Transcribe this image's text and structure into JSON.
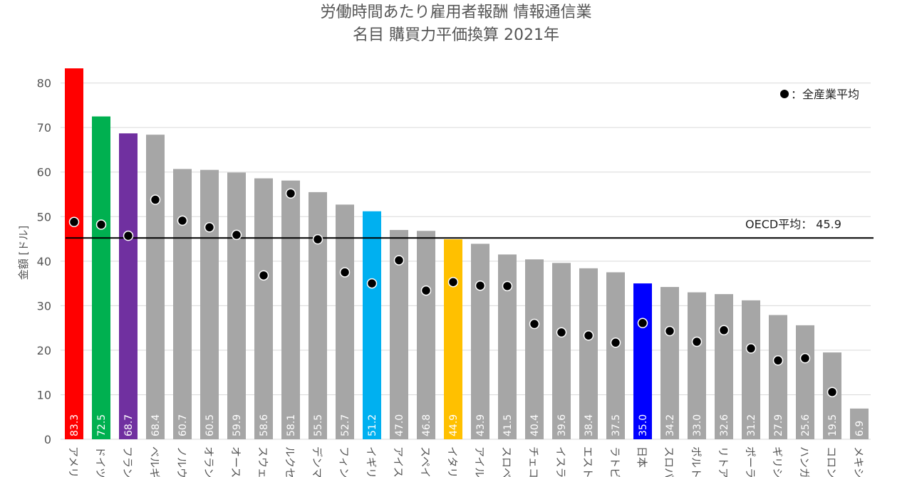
{
  "title": {
    "line1": "労働時間あたり雇用者報酬 情報通信業",
    "line2": "名目 購買力平価換算 2021年"
  },
  "legend": {
    "marker_label": "：全産業平均"
  },
  "chart_data": {
    "type": "bar",
    "title": "労働時間あたり雇用者報酬 情報通信業 名目 購買力平価換算 2021年",
    "ylabel": "金額 [ドル]",
    "ylim": [
      0,
      83.3
    ],
    "yticks": [
      0,
      10,
      20,
      30,
      40,
      50,
      60,
      70,
      80
    ],
    "grid": true,
    "legend_position": "top-right",
    "categories": [
      "アメリ",
      "ドイツ",
      "フラン",
      "ベルギ",
      "ノルウ",
      "オラン",
      "オース",
      "スウェ",
      "ルクセ",
      "デンマ",
      "フィン",
      "イギリ",
      "アイス",
      "スペイ",
      "イタリ",
      "アイル",
      "スロベ",
      "チェコ",
      "イスラ",
      "エスト",
      "ラトビ",
      "日本",
      "スロバ",
      "ポルト",
      "リトア",
      "ポーラ",
      "ギリシ",
      "ハンガ",
      "コロン",
      "メキシ"
    ],
    "value_labels": [
      "83.3",
      "72.5",
      "68.7",
      "68.4",
      "60.7",
      "60.5",
      "59.9",
      "58.6",
      "58.1",
      "55.5",
      "52.7",
      "51.2",
      "47.0",
      "46.8",
      "44.9",
      "43.9",
      "41.5",
      "40.4",
      "39.6",
      "38.4",
      "37.5",
      "35.0",
      "34.2",
      "33.0",
      "32.6",
      "31.2",
      "27.9",
      "25.6",
      "19.5",
      "6.9"
    ],
    "series": [
      {
        "name": "",
        "type": "bar",
        "values": [
          83.3,
          72.5,
          68.7,
          68.4,
          60.7,
          60.5,
          59.9,
          58.6,
          58.1,
          55.5,
          52.7,
          51.2,
          47.0,
          46.8,
          44.9,
          43.9,
          41.5,
          40.4,
          39.6,
          38.4,
          37.5,
          35.0,
          34.2,
          33.0,
          32.6,
          31.2,
          27.9,
          25.6,
          19.5,
          6.9
        ]
      },
      {
        "name": "全産業平均",
        "type": "marker",
        "values": [
          48.8,
          48.2,
          45.7,
          53.8,
          49.1,
          47.6,
          45.9,
          36.8,
          55.2,
          44.9,
          37.5,
          35.0,
          40.2,
          33.4,
          35.3,
          34.5,
          34.4,
          25.9,
          24.0,
          23.3,
          21.7,
          26.1,
          24.3,
          21.9,
          24.5,
          20.4,
          17.7,
          18.2,
          10.6,
          null
        ]
      }
    ],
    "reference_line": {
      "label": "OECD平均：",
      "value": 45.9,
      "value_label": "45.9"
    },
    "colors": {
      "default_bar": "#a6a6a6",
      "highlight": {
        "アメリ": "#ff0000",
        "ドイツ": "#00b050",
        "フラン": "#7030a0",
        "イギリ": "#00b0f0",
        "イタリ": "#ffc000",
        "日本": "#0000ff"
      },
      "marker": "#000000",
      "reference_line": "#000000",
      "grid": "#d9d9d9"
    }
  }
}
